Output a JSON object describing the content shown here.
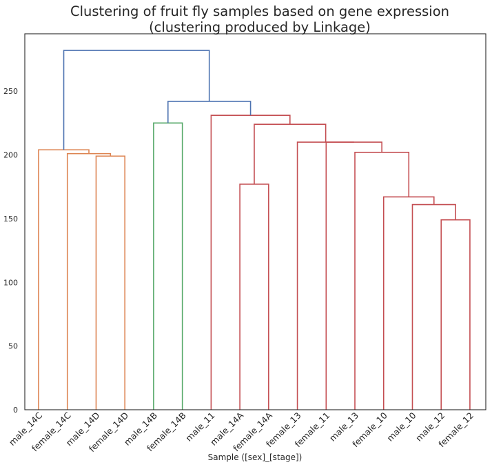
{
  "chart_data": {
    "type": "dendrogram",
    "title_line1": "Clustering of fruit fly samples based on gene expression",
    "title_line2": "(clustering produced by Linkage)",
    "xlabel": "Sample ([sex]_[stage])",
    "ylabel": "",
    "ylim": [
      0,
      295
    ],
    "yticks": [
      0,
      50,
      100,
      150,
      200,
      250
    ],
    "grid": false,
    "leaves": [
      "male_14C",
      "female_14C",
      "male_14D",
      "female_14D",
      "male_14B",
      "female_14B",
      "male_11",
      "male_14A",
      "female_14A",
      "female_13",
      "female_11",
      "male_13",
      "female_10",
      "male_10",
      "male_12",
      "female_12"
    ],
    "colors": {
      "orange": "#dd8452",
      "green": "#55a868",
      "red": "#c44e52",
      "blue": "#4c72b0"
    },
    "links": [
      {
        "left": "male_14D",
        "right": "female_14D",
        "height": 199,
        "color": "orange"
      },
      {
        "left": "female_14C",
        "right": "male_14D+female_14D",
        "height": 201,
        "color": "orange"
      },
      {
        "left": "male_14C",
        "right": "female_14C..female_14D",
        "height": 204,
        "color": "orange"
      },
      {
        "left": "male_14B",
        "right": "female_14B",
        "height": 225,
        "color": "green"
      },
      {
        "left": "male_14A",
        "right": "female_14A",
        "height": 177,
        "color": "red"
      },
      {
        "left": "male_12",
        "right": "female_12",
        "height": 149,
        "color": "red"
      },
      {
        "left": "male_10",
        "right": "male_12+female_12",
        "height": 161,
        "color": "red"
      },
      {
        "left": "female_10",
        "right": "male_10..female_12",
        "height": 167,
        "color": "red"
      },
      {
        "left": "male_13",
        "right": "female_10..female_12",
        "height": 202,
        "color": "red"
      },
      {
        "left": "female_11",
        "right": "male_13..female_12",
        "height": 210,
        "color": "red"
      },
      {
        "left": "female_13",
        "right": "female_11..female_12",
        "height": 210,
        "color": "red"
      },
      {
        "left": "male_14A+female_14A",
        "right": "female_13..female_12",
        "height": 224,
        "color": "red"
      },
      {
        "left": "male_11",
        "right": "male_14A..female_12",
        "height": 231,
        "color": "red"
      },
      {
        "left": "male_14B+female_14B",
        "right": "male_11..female_12",
        "height": 242,
        "color": "blue"
      },
      {
        "left": "male_14C..female_14D",
        "right": "male_14B..female_12",
        "height": 282,
        "color": "blue"
      }
    ]
  }
}
